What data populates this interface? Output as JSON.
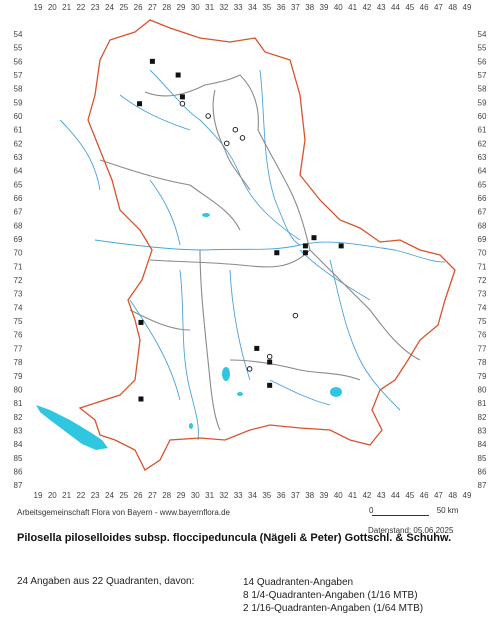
{
  "axes": {
    "x_ticks": [
      "19",
      "20",
      "21",
      "22",
      "23",
      "24",
      "25",
      "26",
      "27",
      "28",
      "29",
      "30",
      "31",
      "32",
      "33",
      "34",
      "35",
      "36",
      "37",
      "38",
      "39",
      "40",
      "41",
      "42",
      "43",
      "44",
      "45",
      "46",
      "47",
      "48",
      "49"
    ],
    "y_ticks": [
      "54",
      "55",
      "56",
      "57",
      "58",
      "59",
      "60",
      "61",
      "62",
      "63",
      "64",
      "65",
      "66",
      "67",
      "68",
      "69",
      "70",
      "71",
      "72",
      "73",
      "74",
      "75",
      "76",
      "77",
      "78",
      "79",
      "80",
      "81",
      "82",
      "83",
      "84",
      "85",
      "86",
      "87"
    ]
  },
  "colors": {
    "state_border": "#d9532b",
    "region_border": "#8a8a8a",
    "rivers": "#4aa3d9",
    "lakes": "#2fc7e0",
    "square_marker": "#111111",
    "circle_marker": "#ffffff"
  },
  "markers": {
    "squares": [
      {
        "x": 27.0,
        "y": 56.0
      },
      {
        "x": 28.8,
        "y": 57.0
      },
      {
        "x": 29.1,
        "y": 58.6
      },
      {
        "x": 26.1,
        "y": 59.1
      },
      {
        "x": 38.3,
        "y": 68.9
      },
      {
        "x": 37.7,
        "y": 69.5
      },
      {
        "x": 37.7,
        "y": 70.0
      },
      {
        "x": 40.2,
        "y": 69.5
      },
      {
        "x": 35.7,
        "y": 70.0
      },
      {
        "x": 26.2,
        "y": 75.1
      },
      {
        "x": 34.3,
        "y": 77.0
      },
      {
        "x": 35.2,
        "y": 78.0
      },
      {
        "x": 35.2,
        "y": 79.7
      },
      {
        "x": 26.2,
        "y": 80.7
      }
    ],
    "circles": [
      {
        "x": 29.1,
        "y": 59.1
      },
      {
        "x": 30.9,
        "y": 60.0
      },
      {
        "x": 32.8,
        "y": 61.0
      },
      {
        "x": 33.3,
        "y": 61.6
      },
      {
        "x": 32.2,
        "y": 62.0
      },
      {
        "x": 37.0,
        "y": 74.6
      },
      {
        "x": 35.2,
        "y": 77.6
      },
      {
        "x": 33.8,
        "y": 78.5
      }
    ]
  },
  "footer": {
    "credit": "Arbeitsgemeinschaft Flora von Bayern - www.bayernflora.de",
    "scale_start": "0",
    "scale_end": "50 km",
    "datenstand": "Datenstand: 05.06.2025"
  },
  "title": "Pilosella piloselloides subsp. floccipeduncula (Nägeli & Peter) Gottschl. & Schuhw.",
  "summary": "24 Angaben aus 22 Quadranten, davon:",
  "breakdown": [
    "14 Quadranten-Angaben",
    "8 1/4-Quadranten-Angaben (1/16 MTB)",
    "2 1/16-Quadranten-Angaben (1/64 MTB)"
  ]
}
